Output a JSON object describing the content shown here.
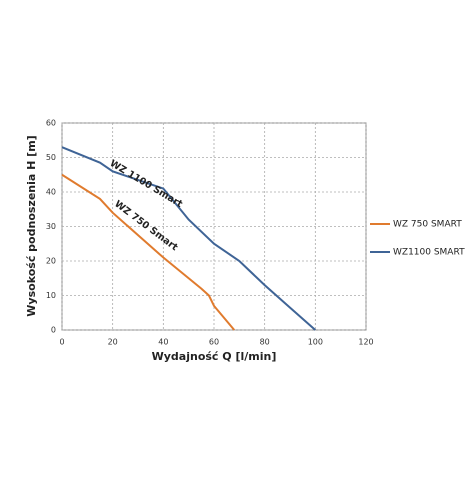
{
  "chart_data": {
    "type": "line",
    "x_label": "Wydajność Q [l/min]",
    "y_label": "Wysokość podnoszenia H [m]",
    "xlim": [
      0,
      120
    ],
    "xticks": [
      0,
      20,
      40,
      60,
      80,
      100,
      120
    ],
    "ylim": [
      0,
      60
    ],
    "yticks": [
      0,
      10,
      20,
      30,
      40,
      50,
      60
    ],
    "grid": true,
    "legend": "right",
    "annotations": [
      "WZ 1100 Smart",
      "WZ 750 Smart"
    ],
    "series": [
      {
        "name": "WZ 750 SMART",
        "color": "#e07b2e",
        "x": [
          0,
          15,
          20,
          30,
          40,
          50,
          55,
          58,
          60,
          68
        ],
        "values": [
          45,
          38,
          34,
          27.5,
          21,
          15,
          12,
          10,
          7,
          0
        ]
      },
      {
        "name": "WZ1100 SMART",
        "color": "#3f6496",
        "x": [
          0,
          15,
          20,
          30,
          40,
          50,
          60,
          70,
          80,
          90,
          100
        ],
        "values": [
          53,
          48.5,
          46,
          43.5,
          41,
          32,
          25,
          20,
          13,
          6.5,
          0
        ]
      }
    ]
  }
}
